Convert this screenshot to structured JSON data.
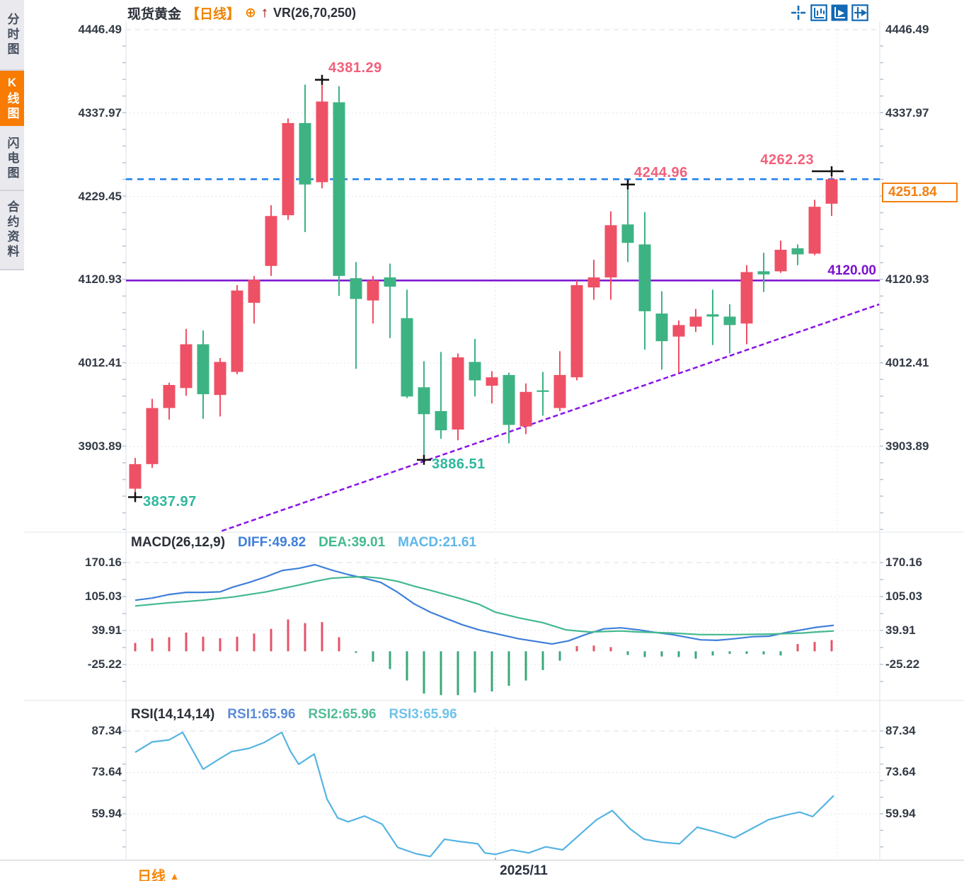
{
  "app": {
    "sidebar": {
      "tabs": [
        {
          "label": "分时图",
          "selected": false
        },
        {
          "label": "K线图",
          "selected": true
        },
        {
          "label": "闪电图",
          "selected": false
        },
        {
          "label": "合约资料",
          "selected": false
        }
      ]
    },
    "header": {
      "symbol": "现货黄金",
      "period_tag": "【日线】",
      "plus_icon": "⊕",
      "up_arrow": "↑",
      "indicator": "VR(26,70,250)"
    },
    "toolbar_icons": [
      "crosshair-move-icon",
      "axis-scale-icon",
      "auto-scroll-icon",
      "jump-latest-icon"
    ],
    "bottom": {
      "period_label": "日线",
      "period_caret": "▲",
      "date_label": "2025/11"
    }
  },
  "colors": {
    "up": "#ee5165",
    "down": "#3db383",
    "annotation_red": "#f2607a",
    "annotation_green": "#2eb79c",
    "purple_line": "#7a10cf",
    "trend_line": "#8a12e8",
    "blue_dashed": "#1f7fe8",
    "tag_orange": "#f28011",
    "accent_orange": "#f87b03",
    "diff": "#3f7fd9",
    "dea": "#43b98d",
    "macd_value": "#5fb6e8",
    "hist_up": "#e4536a",
    "hist_down": "#3aa878",
    "rsi_line": "#56b4e2"
  },
  "chart_data": [
    {
      "type": "candlestick",
      "title": "现货黄金 日线",
      "y_ticks": [
        "4446.49",
        "4337.97",
        "4229.45",
        "4120.93",
        "4012.41",
        "3903.89"
      ],
      "y_tick_values": [
        4446.49,
        4337.97,
        4229.45,
        4120.93,
        4012.41,
        3903.89
      ],
      "x_tick_label": "2025/11",
      "candles": [
        [
          3849,
          3889,
          3838,
          3881
        ],
        [
          3881,
          3966,
          3876,
          3954
        ],
        [
          3954,
          3987,
          3939,
          3984
        ],
        [
          3980,
          4057,
          3970,
          4037
        ],
        [
          4037,
          4055,
          3940,
          3972
        ],
        [
          3971,
          4019,
          3943,
          4014
        ],
        [
          4001,
          4114,
          3998,
          4107
        ],
        [
          4091,
          4126,
          4064,
          4121
        ],
        [
          4139,
          4218,
          4126,
          4204
        ],
        [
          4205,
          4331,
          4199,
          4325
        ],
        [
          4325,
          4375,
          4183,
          4245
        ],
        [
          4248,
          4381.29,
          4240,
          4353
        ],
        [
          4352,
          4373,
          4100,
          4126
        ],
        [
          4123,
          4144,
          4005,
          4096
        ],
        [
          4094,
          4126,
          4064,
          4120
        ],
        [
          4124,
          4142,
          4045,
          4112
        ],
        [
          4071,
          4108,
          3967,
          3969
        ],
        [
          3981,
          4015,
          3886.51,
          3946
        ],
        [
          3950,
          4027,
          3914,
          3925
        ],
        [
          3926,
          4025,
          3912,
          4020
        ],
        [
          4014,
          4044,
          3969,
          3990
        ],
        [
          3983,
          4002,
          3960,
          3994
        ],
        [
          3997,
          4000,
          3908,
          3932
        ],
        [
          3930,
          3986,
          3920,
          3975
        ],
        [
          3977,
          4001,
          3944,
          3975
        ],
        [
          3954,
          4028,
          3950,
          3997
        ],
        [
          3994,
          4120,
          3990,
          4114
        ],
        [
          4111,
          4147,
          4095,
          4124
        ],
        [
          4124,
          4210,
          4095,
          4192
        ],
        [
          4193,
          4244.96,
          4144,
          4169
        ],
        [
          4167,
          4209,
          4030,
          4080
        ],
        [
          4077,
          4106,
          4004,
          4041
        ],
        [
          4047,
          4068,
          4000,
          4062
        ],
        [
          4060,
          4083,
          4053,
          4073
        ],
        [
          4076,
          4108,
          4036,
          4073
        ],
        [
          4073,
          4089,
          4025,
          4062
        ],
        [
          4064,
          4140,
          4037,
          4131
        ],
        [
          4132,
          4156,
          4105,
          4128
        ],
        [
          4132,
          4172,
          4130,
          4160
        ],
        [
          4162,
          4167,
          4140,
          4154
        ],
        [
          4155,
          4225,
          4153,
          4216
        ],
        [
          4220,
          4262.23,
          4204,
          4251.84
        ]
      ],
      "annotations": [
        {
          "text": "4381.29",
          "type": "high",
          "candle": 11,
          "color": "red",
          "side": "right"
        },
        {
          "text": "4244.96",
          "type": "high",
          "candle": 29,
          "color": "red",
          "side": "right"
        },
        {
          "text": "4262.23",
          "type": "high",
          "candle": 41,
          "color": "red",
          "side": "left",
          "wide_cross": true
        },
        {
          "text": "3837.97",
          "type": "low",
          "candle": 0,
          "color": "green",
          "side": "right"
        },
        {
          "text": "3886.51",
          "type": "low",
          "candle": 17,
          "color": "green",
          "side": "right"
        }
      ],
      "overlays": {
        "purple_hline_price": 4120.0,
        "purple_hline_label": "4120.00",
        "blue_dashed_price": 4251.84,
        "price_tag": "4251.84",
        "trendline": {
          "p1_index": 5.1,
          "p1_price": 3794,
          "p2_index": 43.8,
          "p2_price": 4089
        }
      }
    },
    {
      "type": "macd",
      "label": "MACD(26,12,9)",
      "diff_label": "DIFF:49.82",
      "dea_label": "DEA:39.01",
      "macd_label": "MACD:21.61",
      "y_ticks": [
        "170.16",
        "105.03",
        "39.91",
        "-25.22"
      ],
      "y_tick_values": [
        170.16,
        105.03,
        39.91,
        -25.22
      ],
      "histogram": [
        16,
        25,
        27,
        36,
        28,
        25,
        28,
        34,
        43,
        61,
        54,
        56,
        27,
        -3,
        -20,
        -34,
        -56,
        -81,
        -84,
        -84,
        -79,
        -77,
        -66,
        -56,
        -36,
        -18,
        10,
        11,
        8,
        -7,
        -11,
        -10,
        -11,
        -14,
        -8,
        -5,
        -5,
        -6,
        -8,
        14,
        18,
        21.6
      ],
      "diff_points": [
        [
          191,
          98
        ],
        [
          215,
          102
        ],
        [
          239,
          109
        ],
        [
          263,
          113
        ],
        [
          287,
          113
        ],
        [
          311,
          114
        ],
        [
          329,
          123
        ],
        [
          352,
          132
        ],
        [
          376,
          143
        ],
        [
          399,
          155
        ],
        [
          422,
          159
        ],
        [
          445,
          166
        ],
        [
          468,
          156
        ],
        [
          492,
          147
        ],
        [
          515,
          140
        ],
        [
          538,
          132
        ],
        [
          562,
          113
        ],
        [
          585,
          91
        ],
        [
          608,
          75
        ],
        [
          632,
          62
        ],
        [
          653,
          51
        ],
        [
          677,
          41
        ],
        [
          700,
          34
        ],
        [
          733,
          24
        ],
        [
          780,
          14
        ],
        [
          803,
          20
        ],
        [
          827,
          32
        ],
        [
          853,
          43
        ],
        [
          877,
          45
        ],
        [
          903,
          41
        ],
        [
          927,
          36
        ],
        [
          950,
          32
        ],
        [
          990,
          22
        ],
        [
          1013,
          21
        ],
        [
          1037,
          24
        ],
        [
          1063,
          28
        ],
        [
          1087,
          29
        ],
        [
          1110,
          36
        ],
        [
          1132,
          41
        ],
        [
          1153,
          46
        ],
        [
          1178,
          49.8
        ]
      ],
      "dea_points": [
        [
          191,
          87
        ],
        [
          239,
          93
        ],
        [
          287,
          98
        ],
        [
          329,
          104
        ],
        [
          376,
          114
        ],
        [
          422,
          127
        ],
        [
          445,
          134
        ],
        [
          468,
          140
        ],
        [
          492,
          142
        ],
        [
          515,
          143
        ],
        [
          538,
          140
        ],
        [
          562,
          134
        ],
        [
          585,
          125
        ],
        [
          608,
          117
        ],
        [
          632,
          108
        ],
        [
          653,
          100
        ],
        [
          677,
          90
        ],
        [
          700,
          75
        ],
        [
          733,
          64
        ],
        [
          767,
          55
        ],
        [
          800,
          41
        ],
        [
          833,
          37
        ],
        [
          877,
          39
        ],
        [
          903,
          37
        ],
        [
          950,
          35
        ],
        [
          990,
          32
        ],
        [
          1037,
          32
        ],
        [
          1087,
          33
        ],
        [
          1133,
          35
        ],
        [
          1153,
          37
        ],
        [
          1178,
          39
        ]
      ]
    },
    {
      "type": "rsi",
      "label": "RSI(14,14,14)",
      "rsi1_label": "RSI1:65.96",
      "rsi2_label": "RSI2:65.96",
      "rsi3_label": "RSI3:65.96",
      "y_ticks": [
        "87.34",
        "73.64",
        "59.94"
      ],
      "y_tick_values": [
        87.34,
        73.64,
        59.94
      ],
      "points": [
        [
          191,
          80.3
        ],
        [
          215,
          83.7
        ],
        [
          239,
          84.4
        ],
        [
          258,
          86.9
        ],
        [
          287,
          74.7
        ],
        [
          308,
          77.8
        ],
        [
          327,
          80.5
        ],
        [
          352,
          81.6
        ],
        [
          373,
          83.5
        ],
        [
          398,
          86.9
        ],
        [
          410,
          80.8
        ],
        [
          422,
          76.3
        ],
        [
          444,
          79.7
        ],
        [
          462,
          64.8
        ],
        [
          477,
          58.6
        ],
        [
          492,
          57.3
        ],
        [
          515,
          59.2
        ],
        [
          540,
          56.5
        ],
        [
          562,
          48.8
        ],
        [
          588,
          46.7
        ],
        [
          608,
          45.8
        ],
        [
          628,
          51.5
        ],
        [
          648,
          50.8
        ],
        [
          675,
          50
        ],
        [
          685,
          47
        ],
        [
          700,
          46.5
        ],
        [
          723,
          48
        ],
        [
          747,
          47
        ],
        [
          771,
          49
        ],
        [
          795,
          48
        ],
        [
          819,
          53
        ],
        [
          843,
          58
        ],
        [
          865,
          61
        ],
        [
          890,
          55
        ],
        [
          910,
          51.5
        ],
        [
          935,
          50.5
        ],
        [
          960,
          50
        ],
        [
          985,
          55.5
        ],
        [
          1010,
          54
        ],
        [
          1038,
          52
        ],
        [
          1062,
          55
        ],
        [
          1086,
          58
        ],
        [
          1110,
          59.5
        ],
        [
          1130,
          60.5
        ],
        [
          1148,
          59
        ],
        [
          1178,
          65.96
        ]
      ]
    }
  ]
}
